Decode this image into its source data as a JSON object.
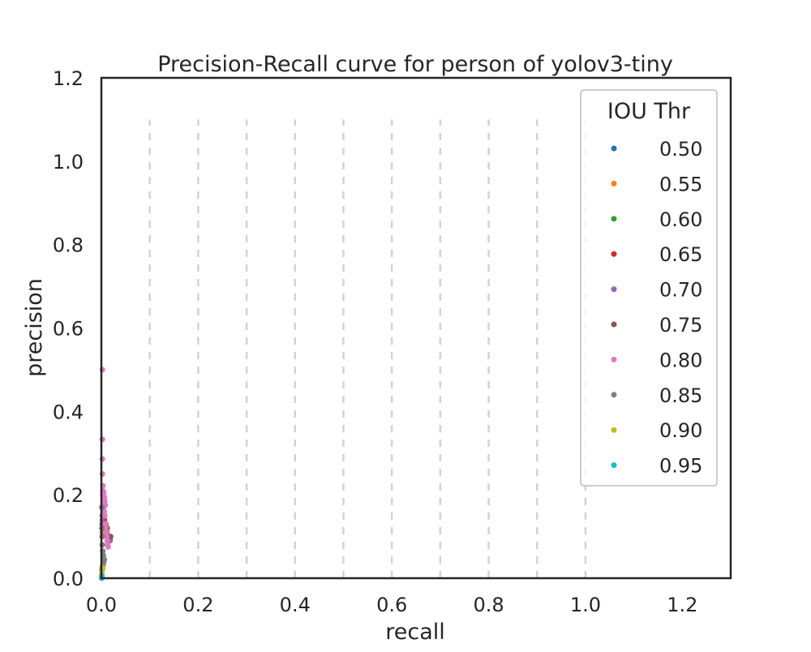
{
  "chart_data": {
    "type": "scatter",
    "title": "Precision-Recall curve for person of yolov3-tiny",
    "xlabel": "recall",
    "ylabel": "precision",
    "xlim": [
      0.0,
      1.3
    ],
    "ylim": [
      0.0,
      1.2
    ],
    "x_ticks": [
      "0.0",
      "0.2",
      "0.4",
      "0.6",
      "0.8",
      "1.0",
      "1.2"
    ],
    "y_ticks": [
      "0.0",
      "0.2",
      "0.4",
      "0.6",
      "0.8",
      "1.0",
      "1.2"
    ],
    "vertical_reference_lines": [
      0.1,
      0.2,
      0.3,
      0.4,
      0.5,
      0.6,
      0.7,
      0.8,
      0.9,
      1.0
    ],
    "reference_line_ymax": 1.1,
    "legend": {
      "title": "IOU Thr",
      "placement": "top-right"
    },
    "series": [
      {
        "name": "0.50",
        "color": "#1f77b4",
        "points": [
          [
            0.002,
            0.1
          ],
          [
            0.004,
            0.12
          ],
          [
            0.006,
            0.15
          ],
          [
            0.008,
            0.13
          ],
          [
            0.01,
            0.11
          ],
          [
            0.012,
            0.1
          ],
          [
            0.014,
            0.09
          ]
        ]
      },
      {
        "name": "0.55",
        "color": "#ff7f0e",
        "points": [
          [
            0.002,
            0.11
          ],
          [
            0.004,
            0.13
          ],
          [
            0.006,
            0.14
          ],
          [
            0.008,
            0.12
          ],
          [
            0.01,
            0.11
          ],
          [
            0.012,
            0.1
          ],
          [
            0.015,
            0.09
          ]
        ]
      },
      {
        "name": "0.60",
        "color": "#2ca02c",
        "points": [
          [
            0.002,
            0.12
          ],
          [
            0.004,
            0.14
          ],
          [
            0.006,
            0.13
          ],
          [
            0.008,
            0.12
          ],
          [
            0.01,
            0.11
          ],
          [
            0.013,
            0.1
          ],
          [
            0.016,
            0.095
          ]
        ]
      },
      {
        "name": "0.65",
        "color": "#d62728",
        "points": [
          [
            0.002,
            0.13
          ],
          [
            0.004,
            0.15
          ],
          [
            0.006,
            0.14
          ],
          [
            0.008,
            0.13
          ],
          [
            0.011,
            0.11
          ],
          [
            0.014,
            0.1
          ],
          [
            0.018,
            0.095
          ]
        ]
      },
      {
        "name": "0.70",
        "color": "#9467bd",
        "points": [
          [
            0.002,
            0.14
          ],
          [
            0.004,
            0.16
          ],
          [
            0.006,
            0.15
          ],
          [
            0.008,
            0.13
          ],
          [
            0.011,
            0.12
          ],
          [
            0.014,
            0.1
          ],
          [
            0.018,
            0.09
          ]
        ]
      },
      {
        "name": "0.75",
        "color": "#8c564b",
        "points": [
          [
            0.002,
            0.15
          ],
          [
            0.004,
            0.17
          ],
          [
            0.006,
            0.15
          ],
          [
            0.009,
            0.13
          ],
          [
            0.012,
            0.12
          ],
          [
            0.015,
            0.1
          ],
          [
            0.019,
            0.1
          ]
        ]
      },
      {
        "name": "0.80",
        "color": "#e377c2",
        "points": [
          [
            0.002,
            0.5
          ],
          [
            0.002,
            0.333
          ],
          [
            0.002,
            0.286
          ],
          [
            0.002,
            0.25
          ],
          [
            0.003,
            0.222
          ],
          [
            0.003,
            0.2
          ],
          [
            0.004,
            0.19
          ],
          [
            0.004,
            0.18
          ],
          [
            0.005,
            0.17
          ],
          [
            0.006,
            0.16
          ],
          [
            0.007,
            0.15
          ],
          [
            0.008,
            0.13
          ],
          [
            0.009,
            0.12
          ],
          [
            0.01,
            0.11
          ],
          [
            0.011,
            0.1
          ],
          [
            0.012,
            0.09
          ],
          [
            0.013,
            0.08
          ],
          [
            0.014,
            0.075
          ],
          [
            0.003,
            0.21
          ],
          [
            0.005,
            0.205
          ],
          [
            0.006,
            0.195
          ],
          [
            0.007,
            0.185
          ],
          [
            0.008,
            0.175
          ]
        ]
      },
      {
        "name": "0.85",
        "color": "#7f7f7f",
        "points": [
          [
            0.001,
            0.02
          ],
          [
            0.002,
            0.025
          ],
          [
            0.003,
            0.03
          ],
          [
            0.004,
            0.035
          ],
          [
            0.005,
            0.04
          ],
          [
            0.006,
            0.045
          ],
          [
            0.004,
            0.055
          ],
          [
            0.003,
            0.065
          ],
          [
            0.002,
            0.08
          ],
          [
            0.002,
            0.1
          ],
          [
            0.001,
            0.12
          ],
          [
            0.001,
            0.17
          ]
        ]
      },
      {
        "name": "0.90",
        "color": "#bcbd22",
        "points": [
          [
            0.001,
            0.01
          ],
          [
            0.002,
            0.02
          ],
          [
            0.003,
            0.025
          ]
        ]
      },
      {
        "name": "0.95",
        "color": "#17becf",
        "points": [
          [
            0.0005,
            0.0
          ],
          [
            0.001,
            0.005
          ]
        ]
      }
    ]
  }
}
